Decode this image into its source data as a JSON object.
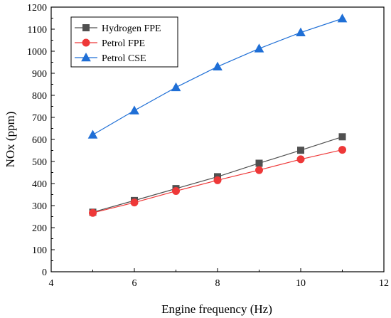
{
  "chart_data": {
    "type": "line",
    "xlabel": "Engine frequency (Hz)",
    "ylabel": "NOx (ppm)",
    "xlim": [
      4,
      12
    ],
    "ylim": [
      0,
      1200
    ],
    "xticks": [
      4,
      6,
      8,
      10,
      12
    ],
    "yticks": [
      0,
      100,
      200,
      300,
      400,
      500,
      600,
      700,
      800,
      900,
      1000,
      1100,
      1200
    ],
    "grid": false,
    "legend_position": "top-left",
    "x": [
      5,
      6,
      7,
      8,
      9,
      10,
      11
    ],
    "series": [
      {
        "name": "Hydrogen FPE",
        "color": "#505050",
        "marker": "square",
        "values": [
          270,
          323,
          377,
          431,
          492,
          551,
          612
        ]
      },
      {
        "name": "Petrol FPE",
        "color": "#ee3838",
        "marker": "circle",
        "values": [
          267,
          314,
          366,
          415,
          461,
          510,
          553
        ]
      },
      {
        "name": "Petrol CSE",
        "color": "#1f6fd6",
        "marker": "triangle",
        "values": [
          621,
          731,
          836,
          930,
          1012,
          1085,
          1148
        ]
      }
    ]
  }
}
